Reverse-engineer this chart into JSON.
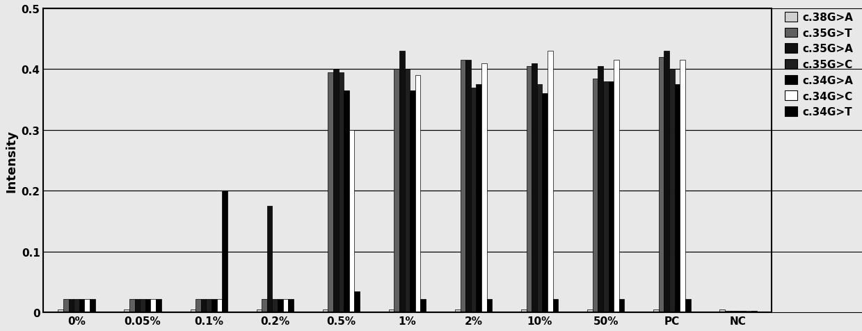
{
  "categories": [
    "0%",
    "0.05%",
    "0.1%",
    "0.2%",
    "0.5%",
    "1%",
    "2%",
    "10%",
    "50%",
    "PC",
    "NC"
  ],
  "series_labels": [
    "c.38G>A",
    "c.35G>T",
    "c.35G>A",
    "c.35G>C",
    "c.34G>A",
    "c.34G>C",
    "c.34G>T"
  ],
  "ylabel": "Intensity",
  "ylim": [
    0,
    0.5
  ],
  "yticks": [
    0,
    0.1,
    0.2,
    0.3,
    0.4,
    0.5
  ],
  "data": {
    "c.38G>A": [
      0.005,
      0.005,
      0.005,
      0.005,
      0.005,
      0.005,
      0.005,
      0.005,
      0.005,
      0.005,
      0.005
    ],
    "c.35G>T": [
      0.022,
      0.022,
      0.022,
      0.022,
      0.395,
      0.4,
      0.415,
      0.405,
      0.385,
      0.42,
      0.003
    ],
    "c.35G>A": [
      0.022,
      0.022,
      0.022,
      0.175,
      0.4,
      0.43,
      0.415,
      0.41,
      0.405,
      0.43,
      0.003
    ],
    "c.35G>C": [
      0.022,
      0.022,
      0.022,
      0.022,
      0.395,
      0.4,
      0.37,
      0.375,
      0.38,
      0.4,
      0.003
    ],
    "c.34G>A": [
      0.022,
      0.022,
      0.022,
      0.022,
      0.365,
      0.365,
      0.375,
      0.36,
      0.38,
      0.375,
      0.003
    ],
    "c.34G>C": [
      0.022,
      0.022,
      0.022,
      0.022,
      0.3,
      0.39,
      0.41,
      0.43,
      0.415,
      0.415,
      0.003
    ],
    "c.34G>T": [
      0.022,
      0.022,
      0.2,
      0.022,
      0.035,
      0.022,
      0.022,
      0.022,
      0.022,
      0.022,
      0.003
    ]
  },
  "colors": {
    "c.38G>A": "#d0d0d0",
    "c.35G>T": "#606060",
    "c.35G>A": "#101010",
    "c.35G>C": "#202020",
    "c.34G>A": "#000000",
    "c.34G>C": "#ffffff",
    "c.34G>T": "#000000"
  },
  "edgecolors": {
    "c.38G>A": "#000000",
    "c.35G>T": "#000000",
    "c.35G>A": "#000000",
    "c.35G>C": "#000000",
    "c.34G>A": "#000000",
    "c.34G>C": "#000000",
    "c.34G>T": "#000000"
  },
  "bg_color": "#e8e8e8",
  "fig_bg_color": "#e8e8e8"
}
